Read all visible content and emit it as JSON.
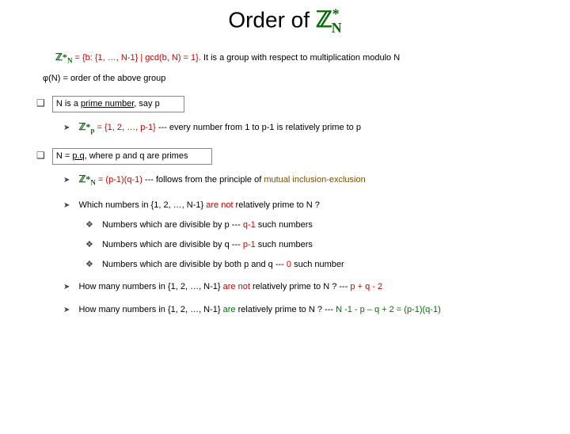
{
  "title": {
    "prefix": "Order of ",
    "symbol": "ℤ",
    "sub": "N",
    "sup": "*"
  },
  "definition": {
    "zn_symbol": "ℤ*",
    "zn_sub": "N",
    "set_text": " = {b: {1, …, N-1} | gcd(b, N) = 1}. ",
    "group_text": "It is a group with respect to multiplication modulo N"
  },
  "phi_line": "φ(N) = order of the above group",
  "case1": {
    "header_prefix": "N is a ",
    "header_em": "prime number",
    "header_suffix": ", say p",
    "zp_symbol": "ℤ*",
    "zp_sub": "p",
    "zp_set": " = {1, 2, …, p-1} ",
    "zp_tail": "--- every number from 1 to p-1 is relatively prime to p"
  },
  "case2": {
    "header_prefix": "N = ",
    "header_em": "p.q",
    "header_suffix": ", where p and q are primes",
    "zn_symbol": "ℤ*",
    "zn_sub": "N",
    "formula": " = (p-1)(q-1) ",
    "principle_lead": "--- follows from the principle of ",
    "principle_em": "mutual inclusion-exclusion",
    "q_which_a": "Which numbers in {1, 2, …, N-1} ",
    "q_which_b": "are not",
    "q_which_c": " relatively prime to N ?",
    "div_p_a": "Numbers which are divisible by p --- ",
    "div_p_b": "q-1",
    "div_p_c": " such numbers",
    "div_q_a": "Numbers which are divisible by q --- ",
    "div_q_b": "p-1",
    "div_q_c": " such numbers",
    "div_pq_a": "Numbers which are divisible by both p and q --- ",
    "div_pq_b": "0",
    "div_pq_c": " such number",
    "howmany_not_a": "How many numbers in {1, 2, …, N-1} ",
    "howmany_not_b": "are not",
    "howmany_not_c": " relatively prime to N ? --- ",
    "howmany_not_d": "p + q - 2",
    "howmany_yes_a": "How many numbers in {1, 2, …, N-1} ",
    "howmany_yes_b": "are",
    "howmany_yes_c": " relatively prime to N ? --- ",
    "howmany_yes_d": "N -1 - p – q + 2  = (p-1)(q-1)"
  },
  "colors": {
    "title_green": "#0a6b0a",
    "red": "#cc0000",
    "brown": "#7a4a00",
    "box_border": "#888888"
  }
}
